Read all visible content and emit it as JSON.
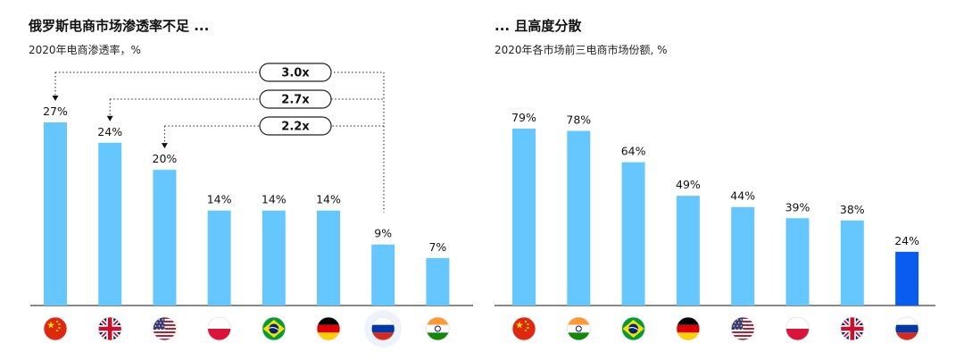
{
  "chart_data": [
    {
      "type": "bar",
      "title": "俄罗斯电商市场渗透率不足 ...",
      "subtitle": "2020年电商渗透率，%",
      "categories": [
        "china",
        "uk",
        "usa",
        "poland",
        "brazil",
        "germany",
        "russia",
        "india"
      ],
      "values": [
        27,
        24,
        20,
        14,
        14,
        14,
        9,
        7
      ],
      "labels": [
        "27%",
        "24%",
        "20%",
        "14%",
        "14%",
        "14%",
        "9%",
        "7%"
      ],
      "bar_color": "#66c7ff",
      "highlight_index": 6,
      "ylim": [
        0,
        27
      ],
      "multipliers": [
        {
          "label": "3.0x",
          "from": "russia",
          "to": "china"
        },
        {
          "label": "2.7x",
          "from": "russia",
          "to": "uk"
        },
        {
          "label": "2.2x",
          "from": "russia",
          "to": "usa"
        }
      ],
      "grid": false
    },
    {
      "type": "bar",
      "title": "... 且高度分散",
      "subtitle": "2020年各市场前三电商市场份额, %",
      "categories": [
        "china",
        "india",
        "brazil",
        "germany",
        "usa",
        "poland",
        "uk",
        "russia"
      ],
      "values": [
        79,
        78,
        64,
        49,
        44,
        39,
        38,
        24
      ],
      "labels": [
        "79%",
        "78%",
        "64%",
        "49%",
        "44%",
        "39%",
        "38%",
        "24%"
      ],
      "bar_color": "#66c7ff",
      "highlight_color": "#0a5cf0",
      "highlight_index": 7,
      "ylim": [
        0,
        79
      ],
      "grid": false
    }
  ]
}
